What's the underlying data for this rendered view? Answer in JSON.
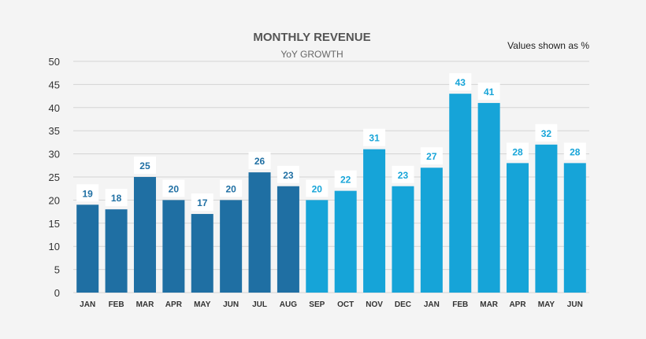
{
  "chart_data": {
    "type": "bar",
    "title": "MONTHLY REVENUE",
    "subtitle": "YoY GROWTH",
    "note": "Values shown as %",
    "categories": [
      "JAN",
      "FEB",
      "MAR",
      "APR",
      "MAY",
      "JUN",
      "JUL",
      "AUG",
      "SEP",
      "OCT",
      "NOV",
      "DEC",
      "JAN",
      "FEB",
      "MAR",
      "APR",
      "MAY",
      "JUN"
    ],
    "values": [
      19,
      18,
      25,
      20,
      17,
      20,
      26,
      23,
      20,
      22,
      31,
      23,
      27,
      43,
      41,
      28,
      32,
      28
    ],
    "ylim": [
      0,
      50
    ],
    "yticks": [
      0,
      5,
      10,
      15,
      20,
      25,
      30,
      35,
      40,
      45,
      50
    ],
    "grid": true,
    "colors": {
      "dark": "#1f6fa3",
      "light": "#16a4d8",
      "grid": "#d4d4d4",
      "label_bg": "#ffffff"
    },
    "color_split_index": 8
  }
}
